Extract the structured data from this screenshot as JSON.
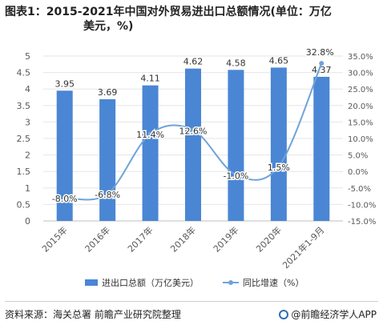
{
  "header": {
    "title_line1": "图表1：2015-2021年中国对外贸易进出口总额情况(单位：万亿",
    "title_line2": "美元，%)"
  },
  "footer": {
    "source": "资料来源：海关总署 前瞻产业研究院整理",
    "brand": "@前瞻经济学人APP"
  },
  "colors": {
    "bar": "#4a86d4",
    "line": "#6fa3d8",
    "grid": "#e6e6e6",
    "axis_text": "#595959"
  },
  "chart_data": {
    "type": "bar",
    "categories": [
      "2015年",
      "2016年",
      "2017年",
      "2018年",
      "2019年",
      "2020年",
      "2021年1-9月"
    ],
    "series": [
      {
        "name": "进出口总额（万亿美元）",
        "type": "bar",
        "axis": "left",
        "values": [
          3.95,
          3.69,
          4.11,
          4.62,
          4.58,
          4.65,
          4.37
        ],
        "labels": [
          "3.95",
          "3.69",
          "4.11",
          "4.62",
          "4.58",
          "4.65",
          "4.37"
        ]
      },
      {
        "name": "同比增速（%）",
        "type": "line",
        "axis": "right",
        "values": [
          -8.0,
          -6.8,
          11.4,
          12.6,
          -1.0,
          1.5,
          32.8
        ],
        "labels": [
          "-8.0%",
          "-6.8%",
          "11.4%",
          "12.6%",
          "-1.0%",
          "1.5%",
          "32.8%"
        ]
      }
    ],
    "ylim_left": [
      0,
      5
    ],
    "yticks_left": [
      "0",
      "0.5",
      "1",
      "1.5",
      "2",
      "2.5",
      "3",
      "3.5",
      "4",
      "4.5",
      "5"
    ],
    "ylim_right": [
      -15,
      35
    ],
    "yticks_right": [
      "-15.0%",
      "-10.0%",
      "-5.0%",
      "0.0%",
      "5.0%",
      "10.0%",
      "15.0%",
      "20.0%",
      "25.0%",
      "30.0%",
      "35.0%"
    ],
    "legend_position": "bottom",
    "grid": true
  }
}
